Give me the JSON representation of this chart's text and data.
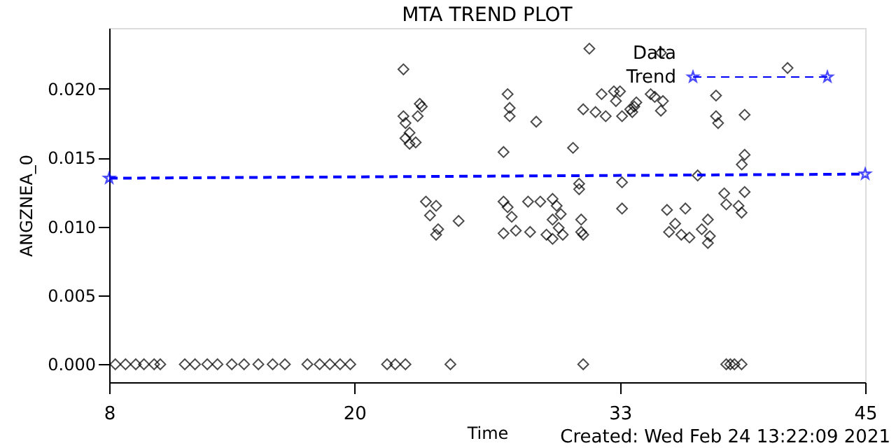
{
  "chart_data": {
    "type": "scatter",
    "title": "MTA TREND PLOT",
    "xlabel": "Time",
    "ylabel": "ANGZNEA_0",
    "annotations": [
      "Created: Wed Feb 24 13:22:09 2021"
    ],
    "xlim": [
      8,
      45
    ],
    "xticks": [
      8,
      20,
      33,
      45
    ],
    "ylim": [
      -0.0013,
      0.0244
    ],
    "yticks": [
      {
        "value": 0,
        "label": "0.000"
      },
      {
        "value": 0.005,
        "label": "0.005"
      },
      {
        "value": 0.01,
        "label": "0.010"
      },
      {
        "value": 0.015,
        "label": "0.015"
      },
      {
        "value": 0.02,
        "label": "0.020"
      }
    ],
    "grid": false,
    "legend": "top right",
    "series": [
      {
        "name": "Data",
        "marker": "diamond",
        "color": "#000000",
        "x": [
          8.3,
          8.8,
          9.3,
          9.7,
          10.2,
          10.5,
          11.7,
          12.2,
          12.8,
          13.3,
          14.0,
          14.6,
          15.3,
          16.0,
          16.6,
          17.7,
          18.3,
          18.8,
          19.3,
          19.8,
          21.6,
          22.0,
          22.5,
          24.7,
          31.2,
          38.2,
          38.4,
          38.6,
          38.95,
          22.4,
          23.2,
          23.3,
          23.1,
          22.4,
          22.5,
          22.7,
          22.5,
          23.0,
          22.7,
          27.5,
          27.6,
          27.6,
          28.9,
          27.3,
          30.7,
          31.5,
          32.1,
          32.7,
          33.0,
          32.8,
          31.2,
          31.8,
          32.3,
          33.5,
          33.8,
          33.1,
          35.0,
          41.2,
          34.5,
          34.7,
          35.1,
          33.7,
          33.6,
          35.0,
          37.7,
          37.7,
          37.8,
          39.1,
          39.1,
          38.96,
          33.1,
          33.1,
          36.8,
          35.3,
          36.2,
          35.7,
          35.4,
          36.0,
          36.4,
          37.3,
          37.0,
          37.4,
          37.3,
          38.1,
          38.2,
          39.1,
          38.8,
          38.95,
          31.0,
          31.0,
          23.5,
          24.0,
          23.7,
          25.1,
          24.1,
          24.0,
          27.3,
          27.5,
          27.7,
          27.3,
          27.9,
          28.6,
          28.5,
          29.1,
          29.7,
          29.9,
          30.1,
          29.7,
          30.0,
          30.2,
          29.4,
          29.7,
          31.1,
          31.1,
          31.2
        ],
        "values": [
          0,
          0,
          0,
          0,
          0,
          0,
          0,
          0,
          0,
          0,
          0,
          0,
          0,
          0,
          0,
          0,
          0,
          0,
          0,
          0,
          0,
          0,
          0,
          0,
          0,
          0,
          0,
          0,
          0,
          0.0214,
          0.0189,
          0.0187,
          0.018,
          0.018,
          0.0175,
          0.0168,
          0.0164,
          0.0161,
          0.016,
          0.0196,
          0.0186,
          0.018,
          0.0176,
          0.0154,
          0.0157,
          0.0229,
          0.0196,
          0.0198,
          0.0198,
          0.0191,
          0.0185,
          0.0183,
          0.018,
          0.0185,
          0.019,
          0.018,
          0.0226,
          0.0215,
          0.0196,
          0.0194,
          0.0191,
          0.0187,
          0.0183,
          0.0184,
          0.0195,
          0.018,
          0.0175,
          0.0181,
          0.0152,
          0.0145,
          0.0132,
          0.0113,
          0.0137,
          0.0112,
          0.0113,
          0.0102,
          0.0096,
          0.0094,
          0.0092,
          0.0105,
          0.0098,
          0.0093,
          0.0088,
          0.0124,
          0.0116,
          0.0125,
          0.0115,
          0.011,
          0.0131,
          0.0127,
          0.0118,
          0.0115,
          0.0108,
          0.0104,
          0.0098,
          0.0094,
          0.0118,
          0.0114,
          0.0107,
          0.0095,
          0.0097,
          0.0096,
          0.0118,
          0.0118,
          0.012,
          0.0115,
          0.0109,
          0.0105,
          0.0099,
          0.0094,
          0.0094,
          0.0091,
          0.0105,
          0.0096,
          0.0094
        ]
      },
      {
        "name": "Trend",
        "type": "line",
        "marker": "star",
        "line_style": "dashed",
        "color": "#0000ff",
        "x": [
          8,
          45
        ],
        "values": [
          0.0135,
          0.0138
        ]
      }
    ]
  }
}
